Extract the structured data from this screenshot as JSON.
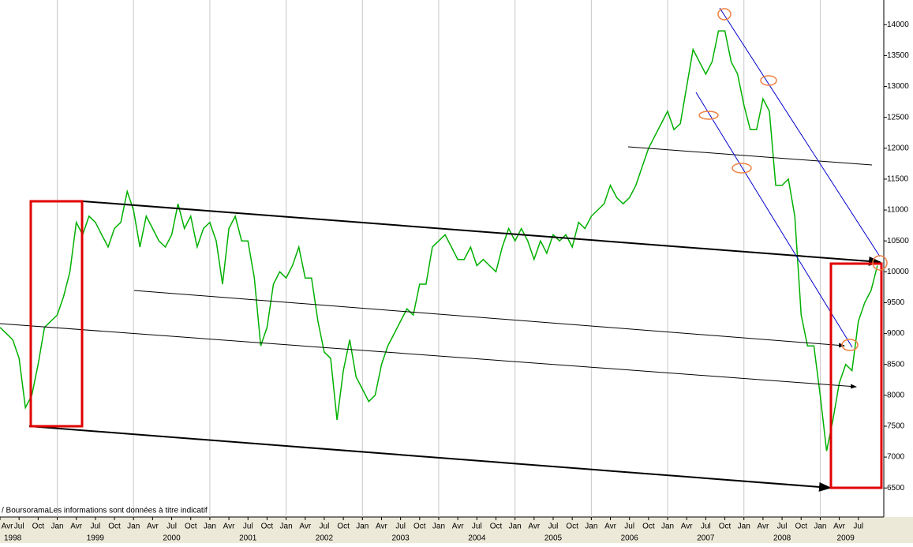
{
  "chart_data": {
    "type": "line",
    "source_note": "/ BoursoramaLes informations sont données à titre indicatif",
    "x": [
      "1998-04",
      "1998-05",
      "1998-06",
      "1998-07",
      "1998-08",
      "1998-09",
      "1998-10",
      "1998-11",
      "1998-12",
      "1999-01",
      "1999-02",
      "1999-03",
      "1999-04",
      "1999-05",
      "1999-06",
      "1999-07",
      "1999-08",
      "1999-09",
      "1999-10",
      "1999-11",
      "1999-12",
      "2000-01",
      "2000-02",
      "2000-03",
      "2000-04",
      "2000-05",
      "2000-06",
      "2000-07",
      "2000-08",
      "2000-09",
      "2000-10",
      "2000-11",
      "2000-12",
      "2001-01",
      "2001-02",
      "2001-03",
      "2001-04",
      "2001-05",
      "2001-06",
      "2001-07",
      "2001-08",
      "2001-09",
      "2001-10",
      "2001-11",
      "2001-12",
      "2002-01",
      "2002-02",
      "2002-03",
      "2002-04",
      "2002-05",
      "2002-06",
      "2002-07",
      "2002-08",
      "2002-09",
      "2002-10",
      "2002-11",
      "2002-12",
      "2003-01",
      "2003-02",
      "2003-03",
      "2003-04",
      "2003-05",
      "2003-06",
      "2003-07",
      "2003-08",
      "2003-09",
      "2003-10",
      "2003-11",
      "2003-12",
      "2004-01",
      "2004-02",
      "2004-03",
      "2004-04",
      "2004-05",
      "2004-06",
      "2004-07",
      "2004-08",
      "2004-09",
      "2004-10",
      "2004-11",
      "2004-12",
      "2005-01",
      "2005-02",
      "2005-03",
      "2005-04",
      "2005-05",
      "2005-06",
      "2005-07",
      "2005-08",
      "2005-09",
      "2005-10",
      "2005-11",
      "2005-12",
      "2006-01",
      "2006-02",
      "2006-03",
      "2006-04",
      "2006-05",
      "2006-06",
      "2006-07",
      "2006-08",
      "2006-09",
      "2006-10",
      "2006-11",
      "2006-12",
      "2007-01",
      "2007-02",
      "2007-03",
      "2007-04",
      "2007-05",
      "2007-06",
      "2007-07",
      "2007-08",
      "2007-09",
      "2007-10",
      "2007-11",
      "2007-12",
      "2008-01",
      "2008-02",
      "2008-03",
      "2008-04",
      "2008-05",
      "2008-06",
      "2008-07",
      "2008-08",
      "2008-09",
      "2008-10",
      "2008-11",
      "2008-12",
      "2009-01",
      "2009-02",
      "2009-03",
      "2009-04",
      "2009-05",
      "2009-06",
      "2009-07",
      "2009-08",
      "2009-09",
      "2009-10"
    ],
    "series": [
      {
        "color": "#00b000",
        "values": [
          9100,
          9000,
          8900,
          8600,
          7800,
          8000,
          8500,
          9100,
          9200,
          9300,
          9600,
          10000,
          10800,
          10600,
          10900,
          10800,
          10600,
          10400,
          10700,
          10800,
          11300,
          11000,
          10400,
          10900,
          10700,
          10500,
          10400,
          10600,
          11100,
          10700,
          10900,
          10400,
          10700,
          10800,
          10500,
          9800,
          10700,
          10900,
          10500,
          10500,
          9900,
          8800,
          9100,
          9800,
          10000,
          9900,
          10100,
          10400,
          9900,
          9900,
          9200,
          8700,
          8600,
          7600,
          8400,
          8900,
          8300,
          8100,
          7900,
          8000,
          8500,
          8800,
          9000,
          9200,
          9400,
          9300,
          9800,
          9800,
          10400,
          10500,
          10600,
          10400,
          10200,
          10200,
          10400,
          10100,
          10200,
          10100,
          10000,
          10400,
          10700,
          10500,
          10700,
          10500,
          10200,
          10500,
          10300,
          10600,
          10500,
          10600,
          10400,
          10800,
          10700,
          10900,
          11000,
          11100,
          11400,
          11200,
          11100,
          11200,
          11400,
          11700,
          12000,
          12200,
          12400,
          12600,
          12300,
          12400,
          13000,
          13600,
          13400,
          13200,
          13400,
          13900,
          13900,
          13400,
          13200,
          12700,
          12300,
          12300,
          12800,
          12600,
          11400,
          11400,
          11500,
          10900,
          9300,
          8800,
          8800,
          8000,
          7100,
          7600,
          8200,
          8500,
          8400,
          9200,
          9500,
          9700,
          10100
        ]
      }
    ],
    "xlim": [
      "1998-04",
      "2009-11"
    ],
    "xticks": [
      {
        "value": "1998-04",
        "label": "Avr"
      },
      {
        "value": "1998-07",
        "label": "Jul"
      },
      {
        "value": "1998-10",
        "label": "Oct"
      },
      {
        "value": "1999-01",
        "label": "Jan"
      },
      {
        "value": "1999-04",
        "label": "Avr"
      },
      {
        "value": "1999-07",
        "label": "Jul"
      },
      {
        "value": "1999-10",
        "label": "Oct"
      },
      {
        "value": "2000-01",
        "label": "Jan"
      },
      {
        "value": "2000-04",
        "label": "Avr"
      },
      {
        "value": "2000-07",
        "label": "Jul"
      },
      {
        "value": "2000-10",
        "label": "Oct"
      },
      {
        "value": "2001-01",
        "label": "Jan"
      },
      {
        "value": "2001-04",
        "label": "Avr"
      },
      {
        "value": "2001-07",
        "label": "Jul"
      },
      {
        "value": "2001-10",
        "label": "Oct"
      },
      {
        "value": "2002-01",
        "label": "Jan"
      },
      {
        "value": "2002-04",
        "label": "Avr"
      },
      {
        "value": "2002-07",
        "label": "Jul"
      },
      {
        "value": "2002-10",
        "label": "Oct"
      },
      {
        "value": "2003-01",
        "label": "Jan"
      },
      {
        "value": "2003-04",
        "label": "Avr"
      },
      {
        "value": "2003-07",
        "label": "Jul"
      },
      {
        "value": "2003-10",
        "label": "Oct"
      },
      {
        "value": "2004-01",
        "label": "Jan"
      },
      {
        "value": "2004-04",
        "label": "Avr"
      },
      {
        "value": "2004-07",
        "label": "Jul"
      },
      {
        "value": "2004-10",
        "label": "Oct"
      },
      {
        "value": "2005-01",
        "label": "Jan"
      },
      {
        "value": "2005-04",
        "label": "Avr"
      },
      {
        "value": "2005-07",
        "label": "Jul"
      },
      {
        "value": "2005-10",
        "label": "Oct"
      },
      {
        "value": "2006-01",
        "label": "Jan"
      },
      {
        "value": "2006-04",
        "label": "Avr"
      },
      {
        "value": "2006-07",
        "label": "Jul"
      },
      {
        "value": "2006-10",
        "label": "Oct"
      },
      {
        "value": "2007-01",
        "label": "Jan"
      },
      {
        "value": "2007-04",
        "label": "Avr"
      },
      {
        "value": "2007-07",
        "label": "Jul"
      },
      {
        "value": "2007-10",
        "label": "Oct"
      },
      {
        "value": "2008-01",
        "label": "Jan"
      },
      {
        "value": "2008-04",
        "label": "Avr"
      },
      {
        "value": "2008-07",
        "label": "Jul"
      },
      {
        "value": "2008-10",
        "label": "Oct"
      },
      {
        "value": "2009-01",
        "label": "Jan"
      },
      {
        "value": "2009-04",
        "label": "Avr"
      },
      {
        "value": "2009-07",
        "label": "Jul"
      }
    ],
    "year_labels": [
      {
        "value": "1998-06",
        "label": "1998"
      },
      {
        "value": "1999-07",
        "label": "1999"
      },
      {
        "value": "2000-07",
        "label": "2000"
      },
      {
        "value": "2001-07",
        "label": "2001"
      },
      {
        "value": "2002-07",
        "label": "2002"
      },
      {
        "value": "2003-07",
        "label": "2003"
      },
      {
        "value": "2004-07",
        "label": "2004"
      },
      {
        "value": "2005-07",
        "label": "2005"
      },
      {
        "value": "2006-07",
        "label": "2006"
      },
      {
        "value": "2007-07",
        "label": "2007"
      },
      {
        "value": "2008-07",
        "label": "2008"
      },
      {
        "value": "2009-05",
        "label": "2009"
      }
    ],
    "xgrid": [
      "1999-01",
      "2000-01",
      "2001-01",
      "2002-01",
      "2003-01",
      "2004-01",
      "2005-01",
      "2006-01",
      "2007-01",
      "2008-01",
      "2009-01"
    ],
    "ylim": [
      6030,
      14400
    ],
    "yticks": [
      6500,
      7000,
      7500,
      8000,
      8500,
      9000,
      9500,
      10000,
      10500,
      11000,
      11500,
      12000,
      12500,
      13000,
      13500,
      14000
    ]
  }
}
